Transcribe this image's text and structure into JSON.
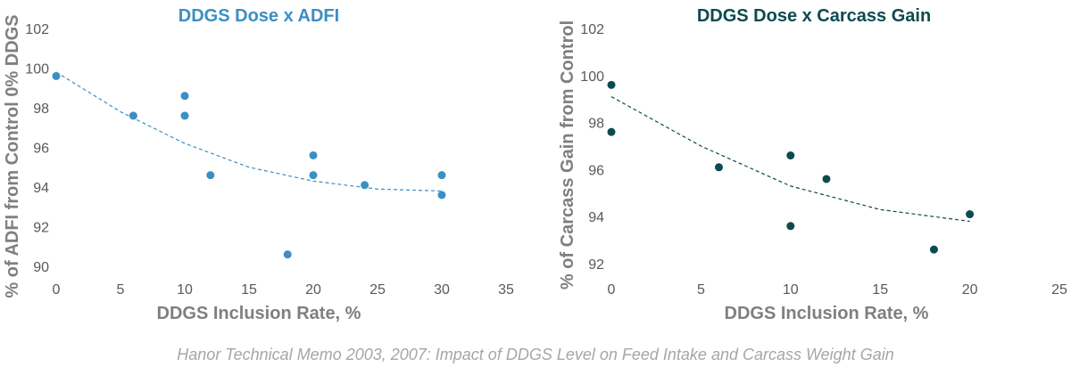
{
  "caption": "Hanor Technical Memo 2003, 2007: Impact of DDGS Level on Feed Intake and Carcass Weight Gain",
  "chart_data": [
    {
      "type": "scatter",
      "title": "DDGS Dose x ADFI",
      "xlabel": "DDGS Inclusion Rate, %",
      "ylabel": "% of ADFI from Control 0% DDGS",
      "xlim": [
        0,
        35
      ],
      "ylim": [
        90,
        102
      ],
      "xticks": [
        0,
        5,
        10,
        15,
        20,
        25,
        30,
        35
      ],
      "yticks": [
        90,
        92,
        94,
        96,
        98,
        100,
        102
      ],
      "color": "#3b8fc4",
      "points": [
        {
          "x": 0,
          "y": 99.6
        },
        {
          "x": 6,
          "y": 97.6
        },
        {
          "x": 10,
          "y": 98.6
        },
        {
          "x": 10,
          "y": 97.6
        },
        {
          "x": 12,
          "y": 94.6
        },
        {
          "x": 18,
          "y": 90.6
        },
        {
          "x": 20,
          "y": 95.6
        },
        {
          "x": 20,
          "y": 94.6
        },
        {
          "x": 24,
          "y": 94.1
        },
        {
          "x": 30,
          "y": 94.6
        },
        {
          "x": 30,
          "y": 93.6
        }
      ],
      "trendline": {
        "style": "dashed",
        "points": [
          {
            "x": 0,
            "y": 99.8
          },
          {
            "x": 5,
            "y": 97.8
          },
          {
            "x": 10,
            "y": 96.2
          },
          {
            "x": 15,
            "y": 95.0
          },
          {
            "x": 20,
            "y": 94.3
          },
          {
            "x": 25,
            "y": 93.9
          },
          {
            "x": 30,
            "y": 93.8
          }
        ]
      },
      "grid": false
    },
    {
      "type": "scatter",
      "title": "DDGS Dose x Carcass Gain",
      "xlabel": "DDGS Inclusion Rate, %",
      "ylabel": "% of Carcass Gain from Control",
      "xlim": [
        0,
        25
      ],
      "ylim": [
        92,
        102
      ],
      "xticks": [
        0,
        5,
        10,
        15,
        20,
        25
      ],
      "yticks": [
        92,
        94,
        96,
        98,
        100,
        102
      ],
      "color": "#0d4a4f",
      "points": [
        {
          "x": 0,
          "y": 99.6
        },
        {
          "x": 0,
          "y": 97.6
        },
        {
          "x": 6,
          "y": 96.1
        },
        {
          "x": 10,
          "y": 96.6
        },
        {
          "x": 10,
          "y": 93.6
        },
        {
          "x": 12,
          "y": 95.6
        },
        {
          "x": 18,
          "y": 92.6
        },
        {
          "x": 20,
          "y": 94.1
        }
      ],
      "trendline": {
        "style": "dashed",
        "points": [
          {
            "x": 0,
            "y": 99.1
          },
          {
            "x": 5,
            "y": 97.0
          },
          {
            "x": 10,
            "y": 95.3
          },
          {
            "x": 15,
            "y": 94.3
          },
          {
            "x": 20,
            "y": 93.8
          }
        ]
      },
      "grid": false
    }
  ]
}
